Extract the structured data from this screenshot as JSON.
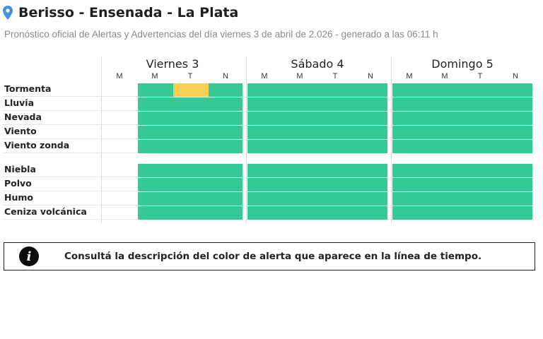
{
  "header": {
    "title": "Berisso - Ensenada - La Plata",
    "subtitle": "Pronóstico oficial de Alertas y Advertencias del día viernes 3 de abril de 2.026 - generado a las 06:11 h",
    "pin_color": "#4a90d9"
  },
  "days": [
    {
      "name": "Viernes 3",
      "periods": [
        "M",
        "M",
        "T",
        "N"
      ]
    },
    {
      "name": "Sábado 4",
      "periods": [
        "M",
        "M",
        "T",
        "N"
      ]
    },
    {
      "name": "Domingo 5",
      "periods": [
        "M",
        "M",
        "T",
        "N"
      ]
    }
  ],
  "groups": [
    [
      "Tormenta",
      "Lluvia",
      "Nevada",
      "Viento",
      "Viento zonda"
    ],
    [
      "Niebla",
      "Polvo",
      "Humo",
      "Ceniza volcánica"
    ]
  ],
  "colors": {
    "green": "#35c995",
    "amber": "#f9cf55"
  },
  "alerts": [
    {
      "row": "Tormenta",
      "day": 0,
      "period": 2,
      "level": "amber"
    }
  ],
  "info": {
    "icon": "info-icon",
    "text": "Consultá la descripción del color de alerta que aparece en la línea de tiempo."
  }
}
